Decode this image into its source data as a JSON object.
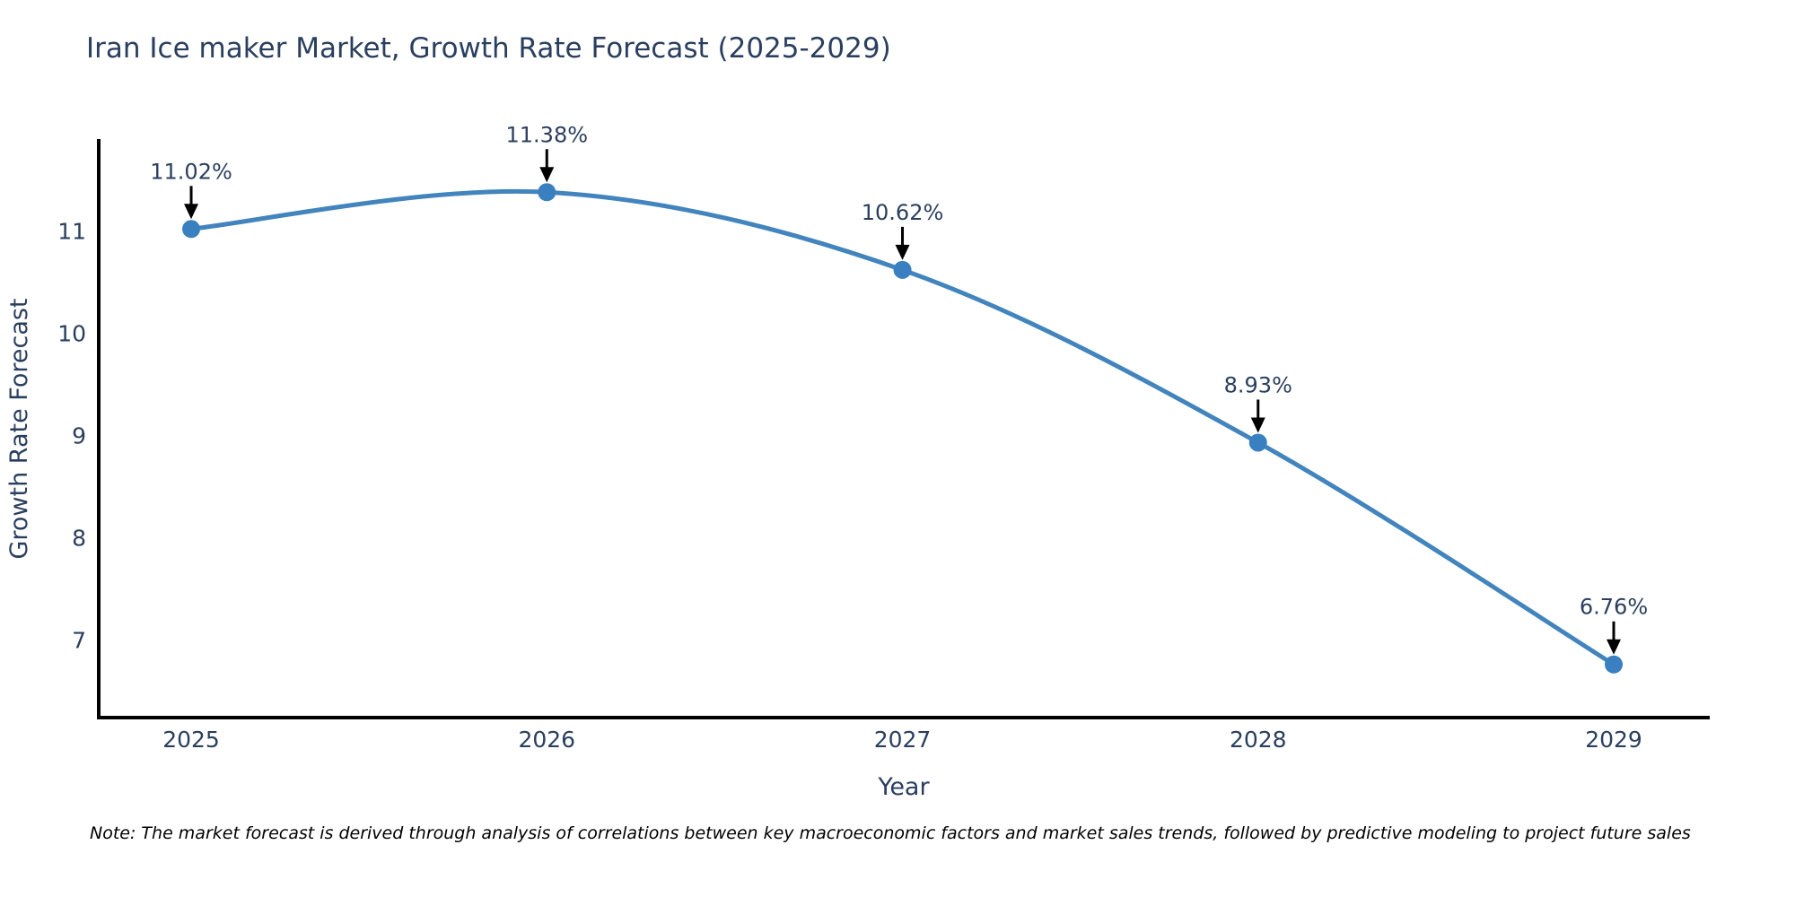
{
  "title": "Iran Ice maker Market, Growth Rate Forecast (2025-2029)",
  "note": "Note: The market forecast is derived through analysis of correlations between key macroeconomic factors and market sales trends, followed by predictive modeling to project future sales",
  "chart_data": {
    "type": "line",
    "title": "Iran Ice maker Market, Growth Rate Forecast (2025-2029)",
    "xlabel": "Year",
    "ylabel": "Growth Rate Forecast",
    "x": [
      2025,
      2026,
      2027,
      2028,
      2029
    ],
    "y": [
      11.02,
      11.38,
      10.62,
      8.93,
      6.76
    ],
    "point_labels": [
      "11.02%",
      "11.38%",
      "10.62%",
      "8.93%",
      "6.76%"
    ],
    "xticks": [
      "2025",
      "2026",
      "2027",
      "2028",
      "2029"
    ],
    "yticks": [
      7,
      8,
      9,
      10,
      11
    ],
    "xlim": [
      2024.74,
      2029.27
    ],
    "ylim": [
      6.24,
      11.9
    ],
    "line_shape": "spline",
    "grid": false,
    "legend": false,
    "colors": {
      "line": "#4284bd",
      "marker": "#3a80c1",
      "text": "#2a3f5f",
      "axis": "#000000",
      "annotation": "#2a3f5f",
      "arrow": "#000000",
      "background": "#ffffff"
    }
  }
}
